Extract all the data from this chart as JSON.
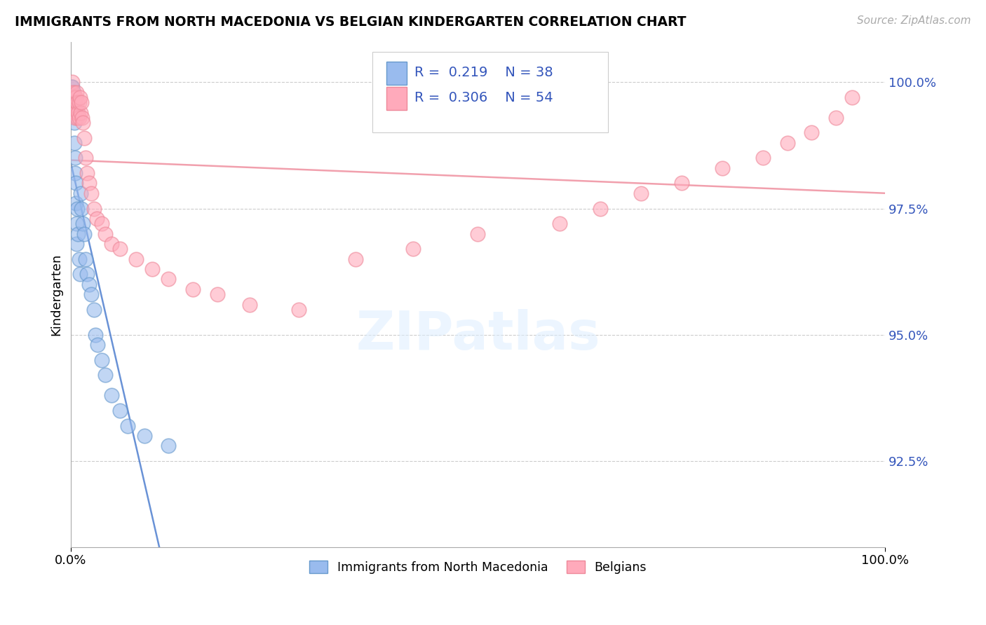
{
  "title": "IMMIGRANTS FROM NORTH MACEDONIA VS BELGIAN KINDERGARTEN CORRELATION CHART",
  "source": "Source: ZipAtlas.com",
  "ylabel": "Kindergarten",
  "legend1_label": "Immigrants from North Macedonia",
  "legend2_label": "Belgians",
  "R1": 0.219,
  "N1": 38,
  "R2": 0.306,
  "N2": 54,
  "blue_color": "#99BBEE",
  "blue_edge_color": "#6699CC",
  "pink_color": "#FFAABB",
  "pink_edge_color": "#EE8899",
  "blue_line_color": "#4477CC",
  "pink_line_color": "#EE8899",
  "ytick_labels": [
    "92.5%",
    "95.0%",
    "97.5%",
    "100.0%"
  ],
  "ytick_values": [
    0.925,
    0.95,
    0.975,
    1.0
  ],
  "xmin": 0.0,
  "xmax": 1.0,
  "ymin": 0.908,
  "ymax": 1.008,
  "blue_x": [
    0.001,
    0.001,
    0.001,
    0.002,
    0.002,
    0.002,
    0.003,
    0.003,
    0.004,
    0.004,
    0.005,
    0.005,
    0.006,
    0.006,
    0.007,
    0.007,
    0.008,
    0.009,
    0.01,
    0.011,
    0.012,
    0.013,
    0.015,
    0.016,
    0.018,
    0.02,
    0.022,
    0.025,
    0.028,
    0.03,
    0.033,
    0.038,
    0.042,
    0.05,
    0.06,
    0.07,
    0.09,
    0.12
  ],
  "blue_y": [
    0.999,
    0.997,
    0.995,
    0.999,
    0.997,
    0.994,
    0.998,
    0.995,
    0.992,
    0.988,
    0.985,
    0.982,
    0.98,
    0.976,
    0.972,
    0.968,
    0.975,
    0.97,
    0.965,
    0.962,
    0.978,
    0.975,
    0.972,
    0.97,
    0.965,
    0.962,
    0.96,
    0.958,
    0.955,
    0.95,
    0.948,
    0.945,
    0.942,
    0.938,
    0.935,
    0.932,
    0.93,
    0.928
  ],
  "pink_x": [
    0.001,
    0.001,
    0.002,
    0.002,
    0.003,
    0.003,
    0.004,
    0.004,
    0.005,
    0.005,
    0.006,
    0.006,
    0.007,
    0.008,
    0.008,
    0.009,
    0.01,
    0.01,
    0.011,
    0.012,
    0.013,
    0.014,
    0.015,
    0.016,
    0.018,
    0.02,
    0.022,
    0.025,
    0.028,
    0.032,
    0.038,
    0.042,
    0.05,
    0.06,
    0.08,
    0.1,
    0.12,
    0.15,
    0.18,
    0.22,
    0.28,
    0.35,
    0.42,
    0.5,
    0.6,
    0.65,
    0.7,
    0.75,
    0.8,
    0.85,
    0.88,
    0.91,
    0.94,
    0.96
  ],
  "pink_y": [
    0.998,
    0.995,
    1.0,
    0.997,
    0.998,
    0.995,
    0.997,
    0.994,
    0.996,
    0.993,
    0.997,
    0.994,
    0.998,
    0.996,
    0.993,
    0.994,
    0.996,
    0.993,
    0.997,
    0.994,
    0.996,
    0.993,
    0.992,
    0.989,
    0.985,
    0.982,
    0.98,
    0.978,
    0.975,
    0.973,
    0.972,
    0.97,
    0.968,
    0.967,
    0.965,
    0.963,
    0.961,
    0.959,
    0.958,
    0.956,
    0.955,
    0.965,
    0.967,
    0.97,
    0.972,
    0.975,
    0.978,
    0.98,
    0.983,
    0.985,
    0.988,
    0.99,
    0.993,
    0.997
  ]
}
